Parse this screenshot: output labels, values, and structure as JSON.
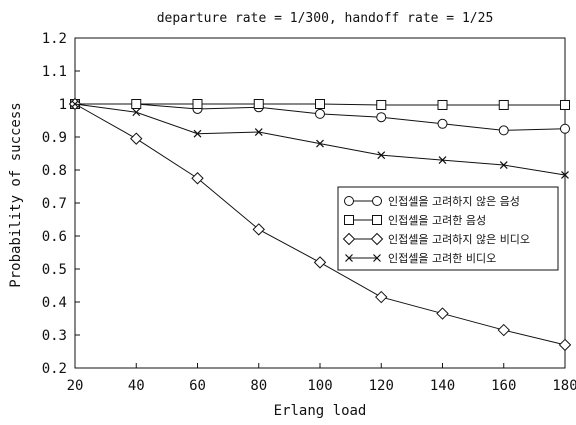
{
  "chart_data": {
    "type": "line",
    "title": "departure rate = 1/300, handoff rate = 1/25",
    "xlabel": "Erlang load",
    "ylabel": "Probability of success",
    "x": [
      20,
      40,
      60,
      80,
      100,
      120,
      140,
      160,
      180
    ],
    "xlim": [
      20,
      180
    ],
    "ylim": [
      0.2,
      1.2
    ],
    "xticks": [
      "20",
      "40",
      "60",
      "80",
      "100",
      "120",
      "140",
      "160",
      "180"
    ],
    "yticks": [
      "0.2",
      "0.3",
      "0.4",
      "0.5",
      "0.6",
      "0.7",
      "0.8",
      "0.9",
      "1",
      "1.1",
      "1.2"
    ],
    "grid": false,
    "legend_position": "right",
    "series": [
      {
        "name": "인접셀을 고려하지 않은 음성",
        "marker": "circle",
        "values": [
          1.0,
          1.0,
          0.985,
          0.99,
          0.97,
          0.96,
          0.94,
          0.92,
          0.925
        ]
      },
      {
        "name": "인접셀을 고려한 음성",
        "marker": "square",
        "values": [
          1.0,
          1.0,
          1.0,
          1.0,
          1.0,
          0.997,
          0.997,
          0.997,
          0.997
        ]
      },
      {
        "name": "인접셀을 고려하지 않은 비디오",
        "marker": "diamond",
        "values": [
          1.0,
          0.895,
          0.775,
          0.62,
          0.52,
          0.415,
          0.365,
          0.315,
          0.27
        ]
      },
      {
        "name": "인접셀을 고려한 비디오",
        "marker": "cross",
        "values": [
          1.0,
          0.975,
          0.91,
          0.915,
          0.88,
          0.845,
          0.83,
          0.815,
          0.785
        ]
      }
    ]
  }
}
